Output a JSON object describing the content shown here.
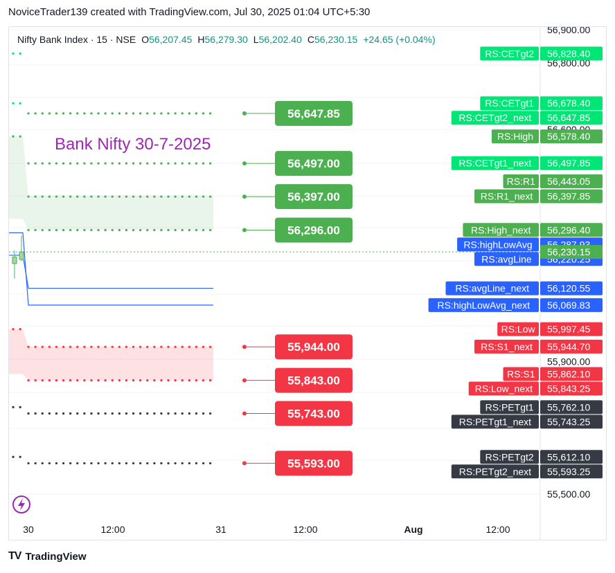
{
  "header": {
    "text": "NoviceTrader139 created with TradingView.com, Jul 30, 2025 01:04 UTC+5:30"
  },
  "legend": {
    "symbol": "Nifty Bank Index · 15 · NSE",
    "o_label": "O",
    "o_value": "56,207.45",
    "h_label": "H",
    "h_value": "56,279.30",
    "l_label": "L",
    "l_value": "56,202.40",
    "c_label": "C",
    "c_value": "56,230.15",
    "change": "+24.65 (+0.04%)"
  },
  "annotation": {
    "text": "Bank Nifty 30-7-2025",
    "color": "#9c27b0"
  },
  "footer": {
    "brand": "TradingView",
    "logo_mark": "TV"
  },
  "colors": {
    "green": "#4caf50",
    "bright_green": "#00e676",
    "red": "#f23645",
    "blue": "#2962ff",
    "dark": "#363a45",
    "purple": "#9c27b0",
    "line_blue": "#2962ff",
    "last_price": "#4caf50"
  },
  "chart_data": {
    "type": "line",
    "title": "Nifty Bank Index · 15 · NSE",
    "ylim": [
      55500,
      56900
    ],
    "y_ticks": [
      "56,900.00",
      "56,800.00",
      "56,600.00",
      "55,900.00",
      "55,500.00"
    ],
    "y_tick_values": [
      56900,
      56800,
      56600,
      55900,
      55500
    ],
    "x_ticks": [
      "30",
      "12:00",
      "31",
      "12:00",
      "Aug",
      "12:00"
    ],
    "grid": true,
    "last_price": 56230.15,
    "last_price_label": "56,230.15",
    "level_boxes": [
      {
        "text": "56,647.85",
        "value": 56647.85,
        "color": "#4caf50"
      },
      {
        "text": "56,497.00",
        "value": 56497.0,
        "color": "#4caf50"
      },
      {
        "text": "56,397.00",
        "value": 56397.0,
        "color": "#4caf50"
      },
      {
        "text": "56,296.00",
        "value": 56296.0,
        "color": "#4caf50"
      },
      {
        "text": "55,944.00",
        "value": 55944.0,
        "color": "#f23645"
      },
      {
        "text": "55,843.00",
        "value": 55843.0,
        "color": "#f23645"
      },
      {
        "text": "55,743.00",
        "value": 55743.0,
        "color": "#f23645"
      },
      {
        "text": "55,593.00",
        "value": 55593.0,
        "color": "#f23645"
      }
    ],
    "dotted_levels": [
      {
        "value": 56647.85,
        "color": "#4caf50"
      },
      {
        "value": 56497.0,
        "color": "#4caf50"
      },
      {
        "value": 56397.0,
        "color": "#4caf50"
      },
      {
        "value": 56296.0,
        "color": "#4caf50"
      },
      {
        "value": 55944.0,
        "color": "#f23645"
      },
      {
        "value": 55843.0,
        "color": "#f23645"
      },
      {
        "value": 55743.0,
        "color": "#363a45"
      },
      {
        "value": 55593.0,
        "color": "#363a45"
      }
    ],
    "series": [
      {
        "name": "RS:CETgt2",
        "value": 56828.4,
        "value_label": "56,828.40",
        "color": "#00e676"
      },
      {
        "name": "RS:CETgt1",
        "value": 56678.4,
        "value_label": "56,678.40",
        "color": "#00e676"
      },
      {
        "name": "RS:CETgt2_next",
        "value": 56647.85,
        "value_label": "56,647.85",
        "color": "#00e676"
      },
      {
        "name": "RS:High",
        "value": 56578.4,
        "value_label": "56,578.40",
        "color": "#4caf50"
      },
      {
        "name": "RS:CETgt1_next",
        "value": 56497.85,
        "value_label": "56,497.85",
        "color": "#00e676"
      },
      {
        "name": "RS:R1",
        "value": 56443.05,
        "value_label": "56,443.05",
        "color": "#4caf50"
      },
      {
        "name": "RS:R1_next",
        "value": 56397.85,
        "value_label": "56,397.85",
        "color": "#4caf50"
      },
      {
        "name": "RS:High_next",
        "value": 56296.4,
        "value_label": "56,296.40",
        "color": "#4caf50"
      },
      {
        "name": "RS:highLowAvg",
        "value": 56287.93,
        "value_label": "56,287.93",
        "color": "#2962ff"
      },
      {
        "name": "RS:avgLine",
        "value": 56220.25,
        "value_label": "56,220.25",
        "color": "#2962ff"
      },
      {
        "name": "RS:avgLine_next",
        "value": 56120.55,
        "value_label": "56,120.55",
        "color": "#2962ff"
      },
      {
        "name": "RS:highLowAvg_next",
        "value": 56069.83,
        "value_label": "56,069.83",
        "color": "#2962ff"
      },
      {
        "name": "RS:Low",
        "value": 55997.45,
        "value_label": "55,997.45",
        "color": "#f23645"
      },
      {
        "name": "RS:S1_next",
        "value": 55944.7,
        "value_label": "55,944.70",
        "color": "#f23645"
      },
      {
        "name": "RS:S1",
        "value": 55862.1,
        "value_label": "55,862.10",
        "color": "#f23645"
      },
      {
        "name": "RS:Low_next",
        "value": 55843.25,
        "value_label": "55,843.25",
        "color": "#f23645"
      },
      {
        "name": "RS:PETgt1",
        "value": 55762.1,
        "value_label": "55,762.10",
        "color": "#363a45"
      },
      {
        "name": "RS:PETgt1_next",
        "value": 55743.25,
        "value_label": "55,743.25",
        "color": "#363a45"
      },
      {
        "name": "RS:PETgt2",
        "value": 55612.1,
        "value_label": "55,612.10",
        "color": "#363a45"
      },
      {
        "name": "RS:PETgt2_next",
        "value": 55593.25,
        "value_label": "55,593.25",
        "color": "#363a45"
      }
    ],
    "candles": [
      {
        "open": 56207.45,
        "high": 56279.3,
        "low": 56202.4,
        "close": 56230.15
      }
    ]
  }
}
